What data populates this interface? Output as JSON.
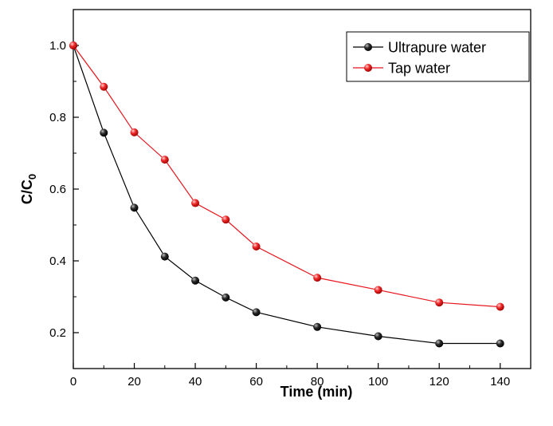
{
  "chart_data": {
    "type": "line",
    "xlabel": "Time (min)",
    "ylabel": {
      "main": "C/C",
      "subscript": "0"
    },
    "xlim": [
      0,
      150
    ],
    "ylim": [
      0.1,
      1.1
    ],
    "x_ticks": [
      0,
      20,
      40,
      60,
      80,
      100,
      120,
      140
    ],
    "x_tick_labels": [
      "0",
      "20",
      "40",
      "60",
      "80",
      "100",
      "120",
      "140"
    ],
    "y_ticks": [
      0.2,
      0.4,
      0.6,
      0.8,
      1.0
    ],
    "y_tick_labels": [
      "0.2",
      "0.4",
      "0.6",
      "0.8",
      "1.0"
    ],
    "grid": false,
    "legend_position": "top-right",
    "x": [
      0,
      10,
      20,
      30,
      40,
      50,
      60,
      80,
      100,
      120,
      140
    ],
    "series": [
      {
        "name": "Ultrapure water",
        "color": "#000000",
        "marker": "sphere",
        "values": [
          1.0,
          0.757,
          0.548,
          0.412,
          0.345,
          0.298,
          0.257,
          0.216,
          0.19,
          0.17,
          0.17
        ]
      },
      {
        "name": "Tap water",
        "color": "#e8141d",
        "marker": "sphere",
        "values": [
          1.0,
          0.885,
          0.758,
          0.682,
          0.561,
          0.515,
          0.44,
          0.353,
          0.319,
          0.284,
          0.272
        ]
      }
    ]
  }
}
